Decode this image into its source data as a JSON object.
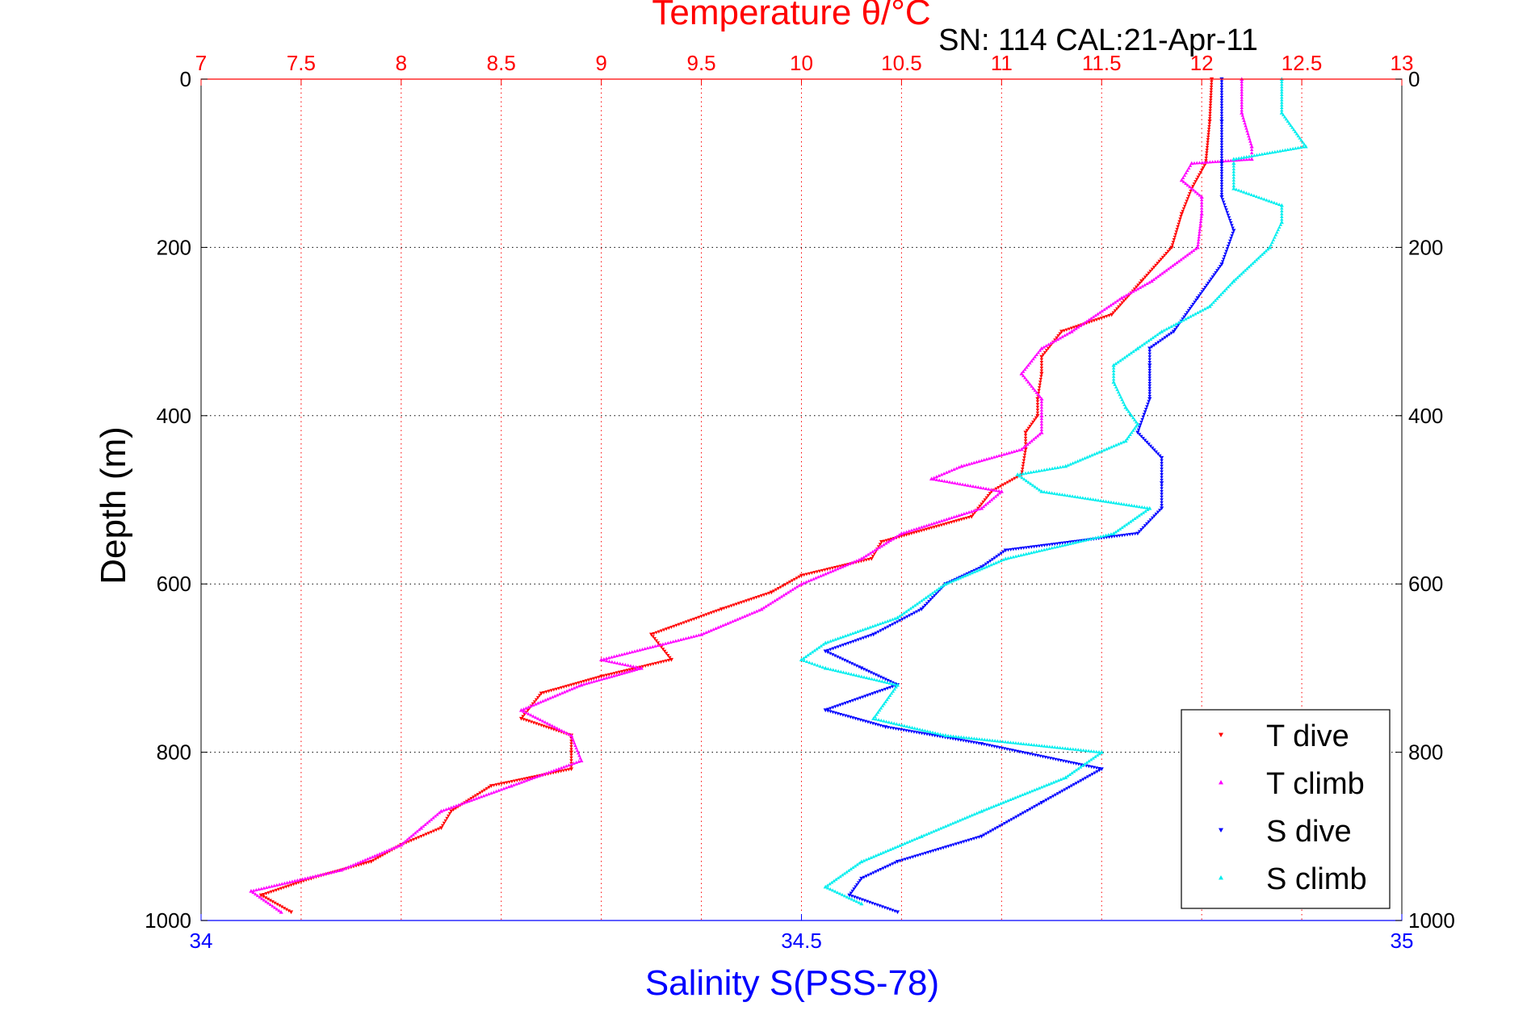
{
  "chart_data": {
    "type": "scatter",
    "title": "Temperature θ/°C",
    "subtitle": "SN: 114  CAL:21-Apr-11",
    "ylabel": "Depth (m)",
    "xlabel_bottom": "Salinity S(PSS-78)",
    "y_axis": {
      "range": [
        0,
        1000
      ],
      "reversed": true,
      "ticks": [
        "0",
        "200",
        "400",
        "600",
        "800",
        "1000"
      ],
      "grid": true
    },
    "x_axis_top": {
      "quantity": "temperature",
      "range": [
        7,
        13
      ],
      "color": "#ff0000",
      "grid": true,
      "ticks": [
        "7",
        "7.5",
        "8",
        "8.5",
        "9",
        "9.5",
        "10",
        "10.5",
        "11",
        "11.5",
        "12",
        "12.5",
        "13"
      ]
    },
    "x_axis_bottom": {
      "quantity": "salinity",
      "range": [
        34,
        35
      ],
      "color": "#0000ff",
      "ticks": [
        "34",
        "34.5",
        "35"
      ]
    },
    "legend": {
      "position": "bottom-right",
      "entries": [
        "T dive",
        "T climb",
        "S dive",
        "S climb"
      ]
    },
    "series": [
      {
        "name": "T dive",
        "axis": "temperature",
        "color": "#ff0000",
        "marker": "triangle-down",
        "depth": [
          0,
          50,
          100,
          130,
          160,
          200,
          240,
          280,
          300,
          330,
          350,
          380,
          400,
          420,
          440,
          470,
          490,
          520,
          550,
          570,
          590,
          610,
          630,
          660,
          690,
          710,
          730,
          760,
          780,
          800,
          820,
          840,
          870,
          890,
          910,
          930,
          950,
          970,
          990
        ],
        "values": [
          12.05,
          12.04,
          12.02,
          11.95,
          11.9,
          11.85,
          11.7,
          11.55,
          11.3,
          11.2,
          11.2,
          11.18,
          11.18,
          11.12,
          11.12,
          11.1,
          10.95,
          10.85,
          10.4,
          10.35,
          10.0,
          9.85,
          9.6,
          9.25,
          9.35,
          9.0,
          8.7,
          8.6,
          8.85,
          8.85,
          8.85,
          8.45,
          8.25,
          8.2,
          8.0,
          7.85,
          7.55,
          7.3,
          7.45
        ]
      },
      {
        "name": "T climb",
        "axis": "temperature",
        "color": "#ff00ff",
        "marker": "triangle-up",
        "depth": [
          0,
          40,
          80,
          95,
          100,
          120,
          140,
          160,
          200,
          240,
          260,
          300,
          320,
          350,
          380,
          400,
          420,
          440,
          460,
          475,
          490,
          510,
          540,
          570,
          600,
          630,
          660,
          690,
          700,
          720,
          750,
          780,
          810,
          840,
          870,
          890,
          910,
          940,
          965,
          990
        ],
        "values": [
          12.2,
          12.2,
          12.25,
          12.25,
          11.95,
          11.9,
          12.0,
          12.0,
          11.98,
          11.75,
          11.6,
          11.35,
          11.2,
          11.1,
          11.2,
          11.2,
          11.2,
          11.1,
          10.8,
          10.65,
          11.0,
          10.9,
          10.5,
          10.3,
          10.0,
          9.8,
          9.5,
          9.0,
          9.2,
          8.9,
          8.6,
          8.85,
          8.9,
          8.55,
          8.2,
          8.1,
          8.0,
          7.7,
          7.25,
          7.4
        ]
      },
      {
        "name": "S dive",
        "axis": "salinity",
        "color": "#0000ff",
        "marker": "triangle-down",
        "depth": [
          0,
          50,
          100,
          140,
          180,
          220,
          260,
          300,
          320,
          340,
          380,
          420,
          450,
          480,
          510,
          540,
          560,
          580,
          600,
          630,
          660,
          680,
          700,
          720,
          750,
          770,
          790,
          820,
          860,
          900,
          930,
          950,
          970,
          990
        ],
        "values": [
          34.85,
          34.85,
          34.85,
          34.85,
          34.86,
          34.85,
          34.83,
          34.81,
          34.79,
          34.79,
          34.79,
          34.78,
          34.8,
          34.8,
          34.8,
          34.78,
          34.67,
          34.65,
          34.62,
          34.6,
          34.56,
          34.52,
          34.55,
          34.58,
          34.52,
          34.57,
          34.65,
          34.75,
          34.7,
          34.65,
          34.58,
          34.55,
          34.54,
          34.58
        ]
      },
      {
        "name": "S climb",
        "axis": "salinity",
        "color": "#00eeee",
        "marker": "triangle-up",
        "depth": [
          0,
          40,
          80,
          95,
          100,
          130,
          150,
          170,
          200,
          240,
          270,
          300,
          320,
          340,
          360,
          390,
          410,
          430,
          460,
          470,
          490,
          510,
          540,
          570,
          600,
          640,
          670,
          690,
          700,
          720,
          760,
          780,
          800,
          830,
          870,
          900,
          930,
          960,
          980
        ],
        "values": [
          34.9,
          34.9,
          34.92,
          34.86,
          34.86,
          34.86,
          34.9,
          34.9,
          34.89,
          34.86,
          34.84,
          34.8,
          34.78,
          34.76,
          34.76,
          34.77,
          34.78,
          34.77,
          34.72,
          34.68,
          34.7,
          34.79,
          34.76,
          34.67,
          34.62,
          34.58,
          34.52,
          34.5,
          34.52,
          34.58,
          34.56,
          34.62,
          34.75,
          34.72,
          34.65,
          34.6,
          34.55,
          34.52,
          34.55
        ]
      }
    ]
  }
}
